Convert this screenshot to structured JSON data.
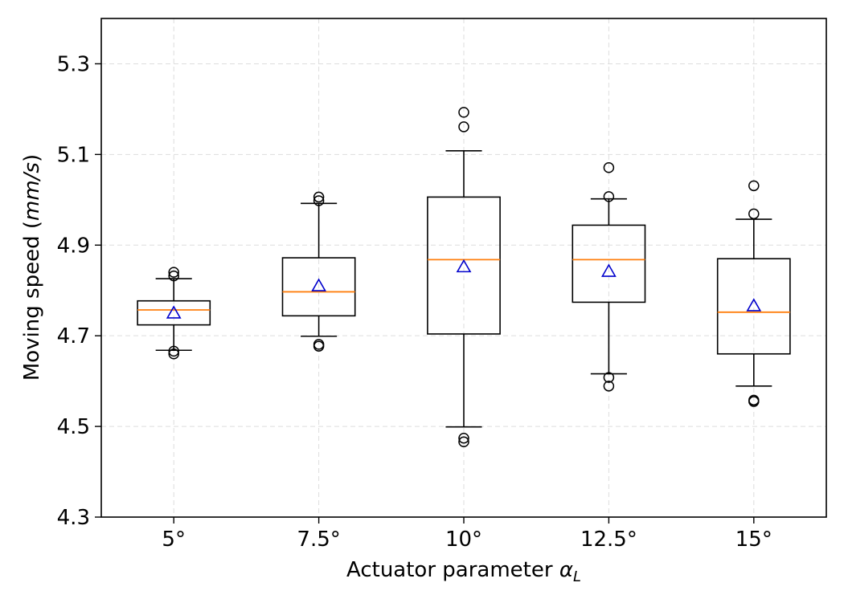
{
  "chart_data": {
    "type": "box",
    "xlabel": "Actuator parameter",
    "xlabel_symbol": "α",
    "xlabel_subscript": "L",
    "ylabel": "Moving speed (",
    "ylabel_unit": "mm/s",
    "ylabel_close": ")",
    "ylim": [
      4.3,
      5.4
    ],
    "yticks": [
      "4.3",
      "4.5",
      "4.7",
      "4.9",
      "5.1",
      "5.3"
    ],
    "grid": true,
    "boxes": [
      {
        "category": "5°",
        "whisker_low": 4.668,
        "q1": 4.724,
        "median": 4.757,
        "q3": 4.777,
        "whisker_high": 4.826,
        "mean": 4.75,
        "fliers": [
          4.66,
          4.666,
          4.832,
          4.84
        ]
      },
      {
        "category": "7.5°",
        "whisker_low": 4.699,
        "q1": 4.744,
        "median": 4.797,
        "q3": 4.872,
        "whisker_high": 4.992,
        "mean": 4.81,
        "fliers": [
          4.677,
          4.681,
          4.998,
          5.006
        ]
      },
      {
        "category": "10°",
        "whisker_low": 4.499,
        "q1": 4.704,
        "median": 4.868,
        "q3": 5.006,
        "whisker_high": 5.108,
        "mean": 4.852,
        "fliers": [
          4.466,
          4.474,
          5.161,
          5.193
        ]
      },
      {
        "category": "12.5°",
        "whisker_low": 4.616,
        "q1": 4.774,
        "median": 4.868,
        "q3": 4.944,
        "whisker_high": 5.002,
        "mean": 4.842,
        "fliers": [
          4.589,
          4.608,
          5.007,
          5.071
        ]
      },
      {
        "category": "15°",
        "whisker_low": 4.589,
        "q1": 4.66,
        "median": 4.752,
        "q3": 4.87,
        "whisker_high": 4.957,
        "mean": 4.766,
        "fliers": [
          4.555,
          4.558,
          4.969,
          5.031
        ]
      }
    ],
    "colors": {
      "box": "#000000",
      "median": "#ff7f0e",
      "mean": "#0000cc",
      "grid": "#dddddd"
    }
  }
}
